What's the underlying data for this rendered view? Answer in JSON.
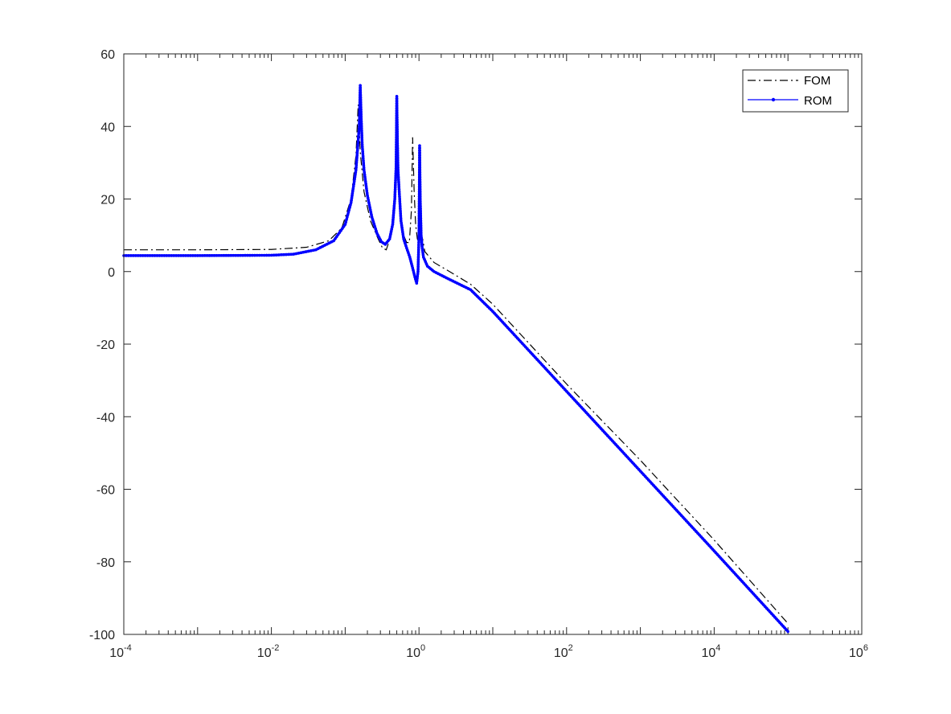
{
  "chart_data": {
    "type": "line",
    "title": "",
    "xlabel": "",
    "ylabel": "",
    "xscale": "log",
    "xlim": [
      0.0001,
      1000000
    ],
    "ylim": [
      -100,
      60
    ],
    "grid": false,
    "legend_position": "top-right",
    "x_ticks": [
      {
        "base": "10",
        "exp": "-4",
        "value": 0.0001
      },
      {
        "base": "10",
        "exp": "-2",
        "value": 0.01
      },
      {
        "base": "10",
        "exp": "0",
        "value": 1
      },
      {
        "base": "10",
        "exp": "2",
        "value": 100
      },
      {
        "base": "10",
        "exp": "4",
        "value": 10000
      },
      {
        "base": "10",
        "exp": "6",
        "value": 1000000
      }
    ],
    "y_ticks": [
      "60",
      "40",
      "20",
      "0",
      "-20",
      "-40",
      "-60",
      "-80",
      "-100"
    ],
    "series": [
      {
        "name": "FOM",
        "color": "#000000",
        "style": "dash-dot",
        "points": [
          [
            0.0001,
            6.0
          ],
          [
            0.001,
            6.0
          ],
          [
            0.01,
            6.1
          ],
          [
            0.03,
            6.7
          ],
          [
            0.06,
            8.5
          ],
          [
            0.09,
            12.0
          ],
          [
            0.12,
            20.0
          ],
          [
            0.14,
            32.0
          ],
          [
            0.15,
            46.0
          ],
          [
            0.16,
            33.0
          ],
          [
            0.18,
            22.0
          ],
          [
            0.22,
            14.0
          ],
          [
            0.28,
            9.0
          ],
          [
            0.32,
            6.5
          ],
          [
            0.36,
            6.0
          ],
          [
            0.42,
            10.0
          ],
          [
            0.46,
            18.0
          ],
          [
            0.49,
            35.0
          ],
          [
            0.5,
            45.0
          ],
          [
            0.52,
            28.0
          ],
          [
            0.56,
            15.0
          ],
          [
            0.62,
            10.0
          ],
          [
            0.68,
            8.0
          ],
          [
            0.74,
            8.0
          ],
          [
            0.79,
            17.0
          ],
          [
            0.82,
            37.0
          ],
          [
            0.86,
            22.0
          ],
          [
            0.9,
            13.0
          ],
          [
            0.95,
            9.0
          ],
          [
            1.0,
            8.0
          ],
          [
            1.06,
            10.0
          ],
          [
            1.12,
            9.0
          ],
          [
            1.2,
            5.5
          ],
          [
            1.6,
            2.5
          ],
          [
            2.5,
            0.2
          ],
          [
            5,
            -3.5
          ],
          [
            10,
            -9.0
          ],
          [
            100,
            -31.0
          ],
          [
            1000,
            -52.0
          ],
          [
            10000,
            -74.0
          ],
          [
            100000,
            -97.0
          ]
        ]
      },
      {
        "name": "ROM",
        "color": "#0000ff",
        "style": "solid-dot",
        "points": [
          [
            0.0001,
            4.4
          ],
          [
            0.001,
            4.4
          ],
          [
            0.01,
            4.5
          ],
          [
            0.02,
            4.8
          ],
          [
            0.04,
            6.0
          ],
          [
            0.07,
            8.5
          ],
          [
            0.1,
            13.0
          ],
          [
            0.12,
            19.0
          ],
          [
            0.14,
            28.0
          ],
          [
            0.155,
            40.0
          ],
          [
            0.16,
            51.3
          ],
          [
            0.165,
            42.0
          ],
          [
            0.17,
            35.0
          ],
          [
            0.18,
            28.0
          ],
          [
            0.2,
            21.0
          ],
          [
            0.23,
            15.0
          ],
          [
            0.27,
            10.5
          ],
          [
            0.31,
            8.2
          ],
          [
            0.35,
            7.5
          ],
          [
            0.4,
            9.0
          ],
          [
            0.44,
            13.0
          ],
          [
            0.47,
            20.0
          ],
          [
            0.49,
            29.0
          ],
          [
            0.5,
            48.3
          ],
          [
            0.51,
            36.0
          ],
          [
            0.52,
            28.0
          ],
          [
            0.54,
            22.0
          ],
          [
            0.57,
            14.0
          ],
          [
            0.62,
            9.0
          ],
          [
            0.68,
            6.5
          ],
          [
            0.75,
            4.0
          ],
          [
            0.82,
            1.0
          ],
          [
            0.88,
            -1.5
          ],
          [
            0.93,
            -3.2
          ],
          [
            0.97,
            0.0
          ],
          [
            1.0,
            10.0
          ],
          [
            1.02,
            34.7
          ],
          [
            1.04,
            20.0
          ],
          [
            1.07,
            10.0
          ],
          [
            1.1,
            7.0
          ],
          [
            1.15,
            4.0
          ],
          [
            1.3,
            1.5
          ],
          [
            1.6,
            0.0
          ],
          [
            2.5,
            -2.0
          ],
          [
            5,
            -5.0
          ],
          [
            10,
            -11.0
          ],
          [
            100,
            -33.0
          ],
          [
            1000,
            -55.0
          ],
          [
            10000,
            -77.0
          ],
          [
            100000,
            -99.2
          ]
        ]
      }
    ]
  }
}
